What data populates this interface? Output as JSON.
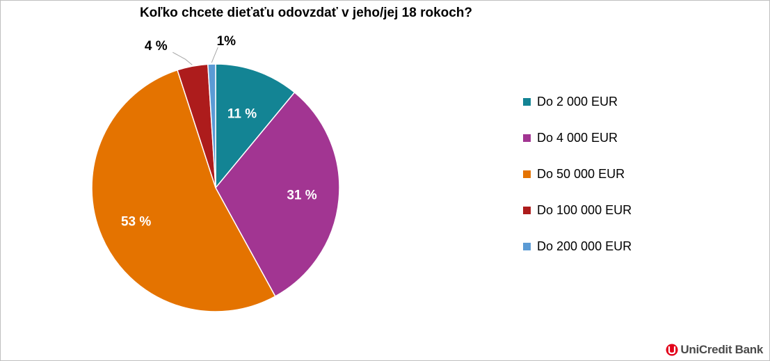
{
  "chart_data": {
    "type": "pie",
    "title": "Koľko chcete dieťaťu odovzdať v jeho/jej 18 rokoch?",
    "legend_position": "right",
    "slices": [
      {
        "label": "Do 2 000 EUR",
        "value": 11,
        "data_label": "11 %",
        "color": "#138494",
        "label_style": "inside-white"
      },
      {
        "label": "Do 4 000 EUR",
        "value": 31,
        "data_label": "31 %",
        "color": "#a23592",
        "label_style": "inside-white"
      },
      {
        "label": "Do 50 000 EUR",
        "value": 53,
        "data_label": "53 %",
        "color": "#e47300",
        "label_style": "inside-white"
      },
      {
        "label": "Do 100 000 EUR",
        "value": 4,
        "data_label": "4 %",
        "color": "#ad1c1c",
        "label_style": "outside-black"
      },
      {
        "label": "Do 200 000 EUR",
        "value": 1,
        "data_label": "1%",
        "color": "#5b9bd5",
        "label_style": "outside-black"
      }
    ]
  },
  "branding": {
    "logo_text": "UniCredit Bank",
    "logo_color": "#e2001a"
  }
}
